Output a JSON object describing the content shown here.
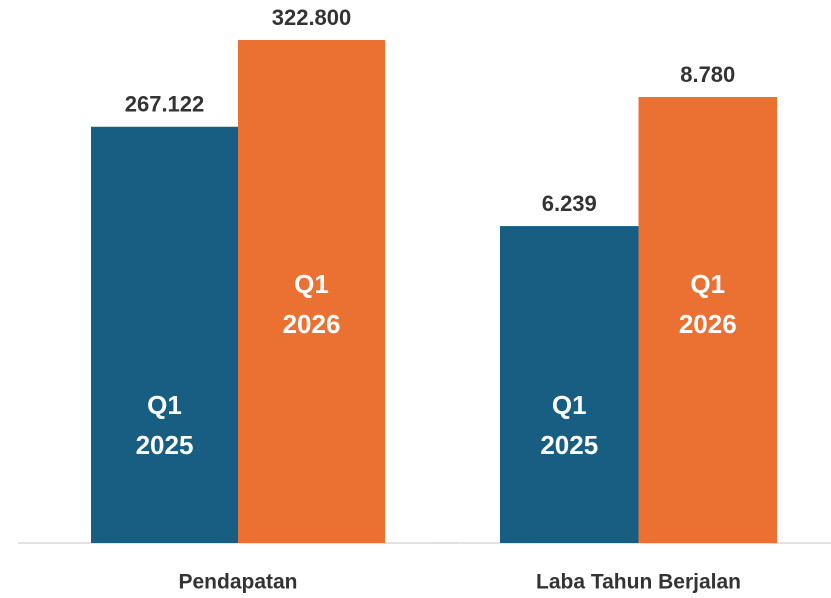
{
  "chart_data": [
    {
      "type": "bar",
      "categories": [
        "Pendapatan"
      ],
      "series": [
        {
          "name": "Q1 2025",
          "color": "#175e82",
          "values": [
            267122
          ],
          "value_labels": [
            "267.122"
          ]
        },
        {
          "name": "Q1 2026",
          "color": "#ea7132",
          "values": [
            322800
          ],
          "value_labels": [
            "322.800"
          ]
        }
      ]
    },
    {
      "type": "bar",
      "categories": [
        "Laba Tahun Berjalan"
      ],
      "series": [
        {
          "name": "Q1 2025",
          "color": "#175e82",
          "values": [
            6239
          ],
          "value_labels": [
            "6.239"
          ]
        },
        {
          "name": "Q1 2026",
          "color": "#ea7132",
          "values": [
            8780
          ],
          "value_labels": [
            "8.780"
          ]
        }
      ]
    }
  ]
}
